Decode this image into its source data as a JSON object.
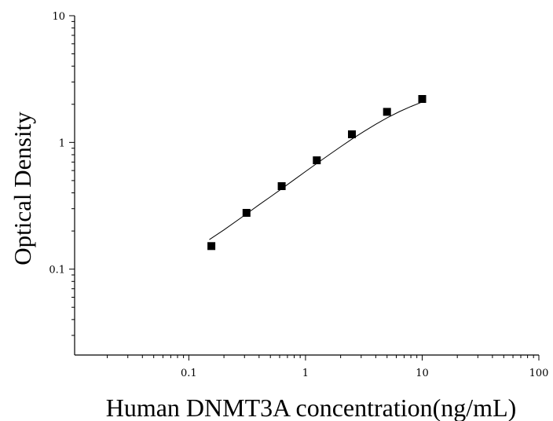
{
  "chart_data": {
    "type": "scatter",
    "xlabel": "Human DNMT3A concentration(ng/mL)",
    "ylabel": "Optical Density",
    "x_scale": "log",
    "y_scale": "log",
    "xlim": [
      0.0105,
      100
    ],
    "ylim": [
      0.021,
      10
    ],
    "x_ticks": [
      {
        "value": 0.1,
        "label": "0.1"
      },
      {
        "value": 1,
        "label": "1"
      },
      {
        "value": 10,
        "label": "10"
      },
      {
        "value": 100,
        "label": "100"
      }
    ],
    "y_ticks": [
      {
        "value": 0.1,
        "label": "0.1"
      },
      {
        "value": 1,
        "label": "1"
      },
      {
        "value": 10,
        "label": "10"
      }
    ],
    "grid": false,
    "series": [
      {
        "marker": "square",
        "color": "#000000",
        "x": [
          0.156,
          0.312,
          0.625,
          1.25,
          2.5,
          5,
          10
        ],
        "y": [
          0.152,
          0.278,
          0.452,
          0.722,
          1.158,
          1.742,
          2.204
        ]
      }
    ],
    "fit_curve": {
      "type": "four-parameter logistic",
      "color": "#000000",
      "x": [
        0.15,
        0.2,
        0.3,
        0.4,
        0.5,
        0.625,
        0.8,
        1.0,
        1.25,
        1.6,
        2.0,
        2.5,
        3.2,
        4.0,
        5.0,
        6.4,
        8.0,
        10.0
      ],
      "y": [
        0.171,
        0.204,
        0.266,
        0.322,
        0.372,
        0.431,
        0.508,
        0.589,
        0.682,
        0.801,
        0.923,
        1.062,
        1.229,
        1.392,
        1.561,
        1.752,
        1.921,
        2.085
      ]
    }
  }
}
